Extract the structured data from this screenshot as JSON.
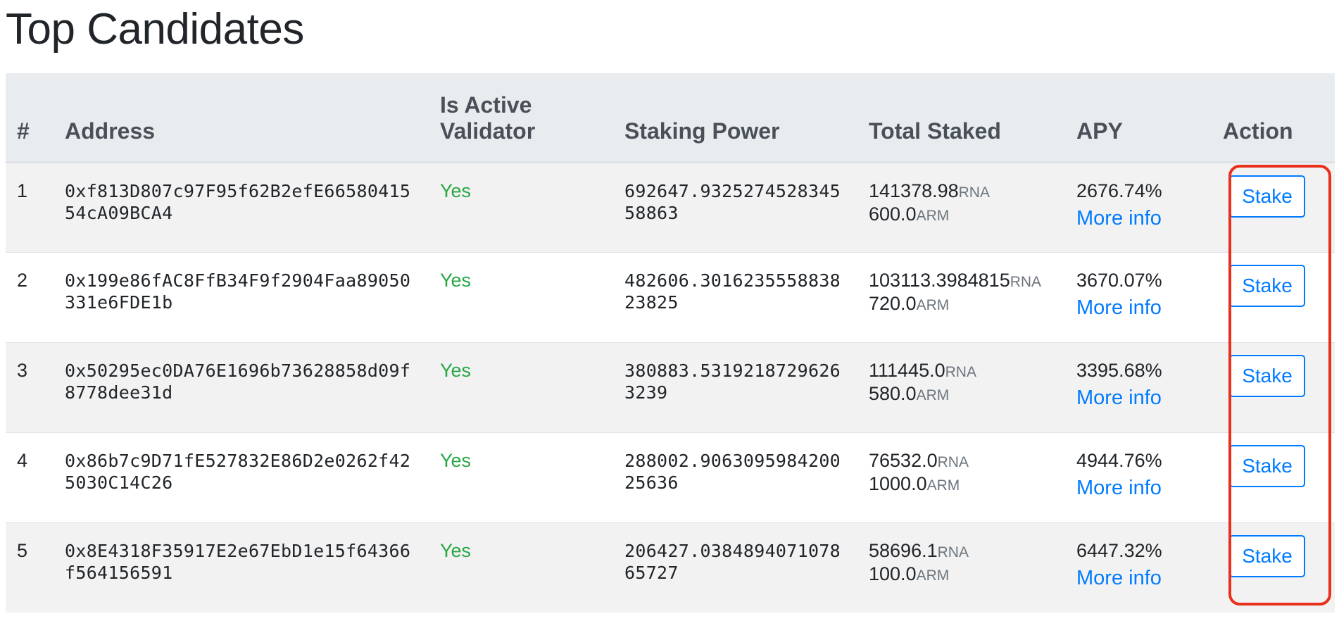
{
  "title": "Top Candidates",
  "columns": [
    "#",
    "Address",
    "Is Active\nValidator",
    "Staking Power",
    "Total Staked",
    "APY",
    "Action"
  ],
  "rows": [
    {
      "index": "1",
      "address": "0xf813D807c97F95f62B2efE6658041554cA09BCA4",
      "active": "Yes",
      "power": "692647.932527452834558863",
      "rna": "141378.98",
      "arm": "600.0",
      "apy": "2676.74%",
      "more": "More info",
      "action": "Stake"
    },
    {
      "index": "2",
      "address": "0x199e86fAC8FfB34F9f2904Faa89050331e6FDE1b",
      "active": "Yes",
      "power": "482606.301623555883823825",
      "rna": "103113.3984815",
      "arm": "720.0",
      "apy": "3670.07%",
      "more": "More info",
      "action": "Stake"
    },
    {
      "index": "3",
      "address": "0x50295ec0DA76E1696b73628858d09f8778dee31d",
      "active": "Yes",
      "power": "380883.53192187296263239",
      "rna": "111445.0",
      "arm": "580.0",
      "apy": "3395.68%",
      "more": "More info",
      "action": "Stake"
    },
    {
      "index": "4",
      "address": "0x86b7c9D71fE527832E86D2e0262f425030C14C26",
      "active": "Yes",
      "power": "288002.906309598420025636",
      "rna": "76532.0",
      "arm": "1000.0",
      "apy": "4944.76%",
      "more": "More info",
      "action": "Stake"
    },
    {
      "index": "5",
      "address": "0x8E4318F35917E2e67EbD1e15f64366f564156591",
      "active": "Yes",
      "power": "206427.038489407107865727",
      "rna": "58696.1",
      "arm": "100.0",
      "apy": "6447.32%",
      "more": "More info",
      "action": "Stake"
    }
  ],
  "units": {
    "rna": "RNA",
    "arm": "ARM"
  },
  "colors": {
    "link": "#007bff",
    "yes": "#28a745",
    "highlight": "#e8301c",
    "header_bg": "#e9ecef",
    "stripe": "#f2f2f2"
  }
}
